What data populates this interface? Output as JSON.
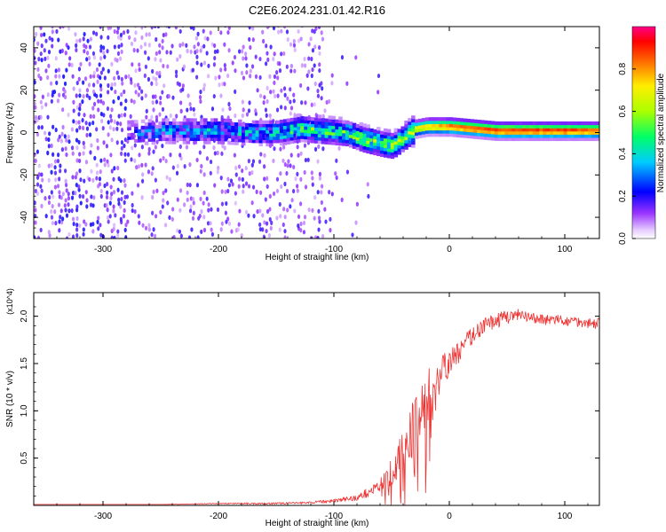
{
  "title": "C2E6.2024.231.01.42.R16",
  "chart_data": [
    {
      "type": "heatmap",
      "xlabel": "Height of straight line (km)",
      "ylabel": "Frequency (Hz)",
      "xlim": [
        -360,
        130
      ],
      "ylim": [
        -50,
        50
      ],
      "x_ticks": [
        -300,
        -200,
        -100,
        0,
        100
      ],
      "y_ticks": [
        -40,
        -20,
        0,
        20,
        40
      ],
      "colorbar": {
        "label": "Normalized spectral amplitude",
        "range": [
          0,
          1
        ],
        "ticks": [
          "0.0",
          "0.2",
          "0.4",
          "0.6",
          "0.8"
        ],
        "tick_values": [
          0,
          0.2,
          0.4,
          0.6,
          0.8
        ]
      },
      "ridge": {
        "x": [
          -280,
          -250,
          -220,
          -200,
          -170,
          -150,
          -130,
          -110,
          -90,
          -75,
          -60,
          -50,
          -40,
          -30,
          -20,
          0,
          20,
          40,
          60,
          80,
          100,
          130
        ],
        "freq": [
          0,
          1,
          1,
          1,
          0,
          0,
          2,
          1,
          0,
          -3,
          -5,
          -6,
          -2,
          2,
          3,
          3,
          2,
          1,
          1,
          1,
          1,
          1
        ],
        "amplitude": [
          0.15,
          0.25,
          0.3,
          0.3,
          0.3,
          0.35,
          0.45,
          0.45,
          0.45,
          0.5,
          0.5,
          0.5,
          0.55,
          0.7,
          0.75,
          0.85,
          0.9,
          0.9,
          0.9,
          0.9,
          0.9,
          0.85
        ]
      },
      "noise_region_x": [
        -360,
        -110
      ]
    },
    {
      "type": "line",
      "xlabel": "Height of straight line (km)",
      "ylabel": "SNR (10 * v/v)",
      "y_multiplier": "(x10^4)",
      "xlim": [
        -360,
        130
      ],
      "ylim": [
        0,
        2.25
      ],
      "x_ticks": [
        -300,
        -200,
        -100,
        0,
        100
      ],
      "y_ticks": [
        0.5,
        1.0,
        1.5,
        2.0
      ],
      "y_tick_labels": [
        "0.5",
        "1.0",
        "1.5",
        "2.0"
      ],
      "series": [
        {
          "color": "#ee3333",
          "x": [
            -360,
            -300,
            -250,
            -200,
            -150,
            -120,
            -100,
            -80,
            -60,
            -50,
            -40,
            -30,
            -20,
            -10,
            0,
            10,
            20,
            30,
            40,
            50,
            60,
            70,
            80,
            90,
            100,
            110,
            120,
            130
          ],
          "y": [
            0.01,
            0.01,
            0.01,
            0.02,
            0.02,
            0.03,
            0.05,
            0.08,
            0.2,
            0.35,
            0.55,
            0.85,
            1.15,
            1.35,
            1.5,
            1.65,
            1.8,
            1.9,
            1.95,
            2.0,
            2.0,
            1.98,
            1.97,
            1.96,
            1.95,
            1.95,
            1.93,
            1.92
          ],
          "noise": [
            0,
            0,
            0,
            0.005,
            0.01,
            0.01,
            0.02,
            0.03,
            0.08,
            0.15,
            0.25,
            0.35,
            0.3,
            0.2,
            0.15,
            0.12,
            0.1,
            0.08,
            0.08,
            0.08,
            0.08,
            0.06,
            0.06,
            0.06,
            0.06,
            0.06,
            0.06,
            0.06
          ]
        }
      ]
    }
  ]
}
